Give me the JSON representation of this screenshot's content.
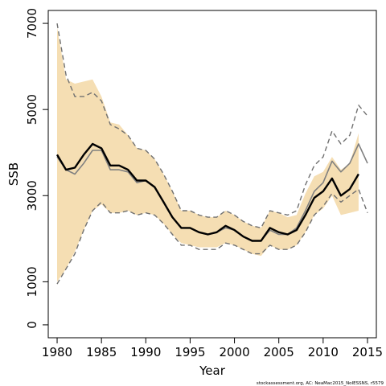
{
  "chart_data": {
    "type": "line",
    "title": "",
    "xlabel": "Year",
    "ylabel": "SSB",
    "xlim": [
      1979,
      2016
    ],
    "ylim": [
      -300,
      7300
    ],
    "grid": false,
    "legend": "none",
    "xticks": [
      1980,
      1985,
      1990,
      1995,
      2000,
      2005,
      2010,
      2015
    ],
    "yticks": [
      0,
      1000,
      3000,
      5000,
      7000
    ],
    "band": {
      "x": [
        1980,
        1981,
        1982,
        1983,
        1984,
        1985,
        1986,
        1987,
        1988,
        1989,
        1990,
        1991,
        1992,
        1993,
        1994,
        1995,
        1996,
        1997,
        1998,
        1999,
        2000,
        2001,
        2002,
        2003,
        2004,
        2005,
        2006,
        2007,
        2008,
        2009,
        2010,
        2011,
        2012,
        2013,
        2014
      ],
      "lower": [
        1000,
        1300,
        1700,
        2200,
        2650,
        2800,
        2600,
        2600,
        2650,
        2550,
        2600,
        2550,
        2350,
        2100,
        1900,
        1850,
        1800,
        1800,
        1800,
        1900,
        1850,
        1750,
        1650,
        1600,
        1850,
        1750,
        1750,
        1850,
        2150,
        2550,
        2700,
        3000,
        2550,
        2600,
        2650
      ],
      "upper": [
        6900,
        5700,
        5600,
        5650,
        5700,
        5300,
        4700,
        4650,
        4400,
        4100,
        4050,
        3850,
        3500,
        3100,
        2650,
        2650,
        2550,
        2500,
        2500,
        2650,
        2550,
        2400,
        2300,
        2250,
        2650,
        2600,
        2500,
        2550,
        3050,
        3450,
        3550,
        3900,
        3600,
        3750,
        4450
      ],
      "color": "#f5deb3"
    },
    "series": [
      {
        "values": [
          3950,
          3600,
          3650,
          3950,
          4200,
          4100,
          3700,
          3700,
          3600,
          3350,
          3350,
          3200,
          2850,
          2500,
          2250,
          2250,
          2150,
          2100,
          2150,
          2300,
          2200,
          2050,
          1950,
          1950,
          2250,
          2150,
          2100,
          2200,
          2550,
          2950,
          3100,
          3400,
          3000,
          3150,
          3500
        ],
        "color": "#000000",
        "style": "solid-bold"
      },
      {
        "x": [
          1980,
          1981,
          1982,
          1983,
          1984,
          1985,
          1986,
          1987,
          1988,
          1989,
          1990,
          1991,
          1992,
          1993,
          1994,
          1995,
          1996,
          1997,
          1998,
          1999,
          2000,
          2001,
          2002,
          2003,
          2004,
          2005,
          2006,
          2007,
          2008,
          2009,
          2010,
          2011,
          2012,
          2013,
          2014,
          2015
        ],
        "values": [
          3900,
          3600,
          3500,
          3750,
          4050,
          4050,
          3600,
          3600,
          3550,
          3300,
          3350,
          3200,
          2850,
          2500,
          2250,
          2250,
          2150,
          2100,
          2150,
          2250,
          2200,
          2050,
          1950,
          1950,
          2200,
          2100,
          2100,
          2250,
          2650,
          3100,
          3300,
          3800,
          3550,
          3750,
          4200,
          3750
        ],
        "color": "#808080",
        "style": "solid"
      },
      {
        "x": [
          1980,
          1981,
          1982,
          1983,
          1984,
          1985,
          1986,
          1987,
          1988,
          1989,
          1990,
          1991,
          1992,
          1993,
          1994,
          1995,
          1996,
          1997,
          1998,
          1999,
          2000,
          2001,
          2002,
          2003,
          2004,
          2005,
          2006,
          2007,
          2008,
          2009,
          2010,
          2011,
          2012,
          2013,
          2014,
          2015
        ],
        "values": [
          7000,
          5800,
          5300,
          5300,
          5400,
          5200,
          4650,
          4550,
          4400,
          4100,
          4050,
          3850,
          3500,
          3100,
          2650,
          2650,
          2550,
          2500,
          2500,
          2650,
          2550,
          2400,
          2300,
          2250,
          2650,
          2600,
          2550,
          2650,
          3250,
          3700,
          3900,
          4500,
          4200,
          4400,
          5100,
          4850
        ],
        "color": "#707070",
        "style": "dashed"
      },
      {
        "x": [
          1980,
          1981,
          1982,
          1983,
          1984,
          1985,
          1986,
          1987,
          1988,
          1989,
          1990,
          1991,
          1992,
          1993,
          1994,
          1995,
          1996,
          1997,
          1998,
          1999,
          2000,
          2001,
          2002,
          2003,
          2004,
          2005,
          2006,
          2007,
          2008,
          2009,
          2010,
          2011,
          2012,
          2013,
          2014,
          2015
        ],
        "values": [
          950,
          1300,
          1650,
          2200,
          2650,
          2850,
          2600,
          2600,
          2650,
          2550,
          2600,
          2550,
          2350,
          2100,
          1850,
          1850,
          1750,
          1750,
          1750,
          1900,
          1850,
          1750,
          1650,
          1650,
          1850,
          1750,
          1750,
          1850,
          2150,
          2550,
          2750,
          3050,
          2850,
          3000,
          3150,
          2600
        ],
        "color": "#707070",
        "style": "dashed"
      }
    ],
    "credit": "stockassessment.org, AC: NeaMac2015_NoIESSNS, r5579"
  }
}
